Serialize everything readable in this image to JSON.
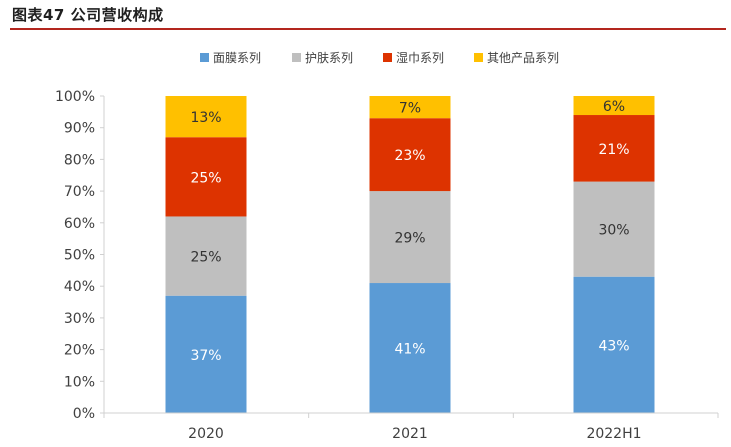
{
  "figure": {
    "title": "图表47  公司营收构成"
  },
  "chart_data": {
    "type": "bar",
    "stacked": true,
    "categories": [
      "2020",
      "2021",
      "2022H1"
    ],
    "series": [
      {
        "name": "面膜系列",
        "color": "#5b9bd5",
        "values": [
          37,
          41,
          43
        ],
        "labels": [
          "37%",
          "41%",
          "43%"
        ],
        "label_color": "#ffffff"
      },
      {
        "name": "护肤系列",
        "color": "#bfbfbf",
        "values": [
          25,
          29,
          30
        ],
        "labels": [
          "25%",
          "29%",
          "30%"
        ],
        "label_color": "#333333"
      },
      {
        "name": "湿巾系列",
        "color": "#dd3300",
        "values": [
          25,
          23,
          21
        ],
        "labels": [
          "25%",
          "23%",
          "21%"
        ],
        "label_color": "#ffffff"
      },
      {
        "name": "其他产品系列",
        "color": "#ffc000",
        "values": [
          13,
          7,
          6
        ],
        "labels": [
          "13%",
          "7%",
          "6%"
        ],
        "label_color": "#333333"
      }
    ],
    "ylim": [
      0,
      100
    ],
    "yticks": [
      "0%",
      "10%",
      "20%",
      "30%",
      "40%",
      "50%",
      "60%",
      "70%",
      "80%",
      "90%",
      "100%"
    ],
    "legend_position": "top-center",
    "grid": false
  }
}
